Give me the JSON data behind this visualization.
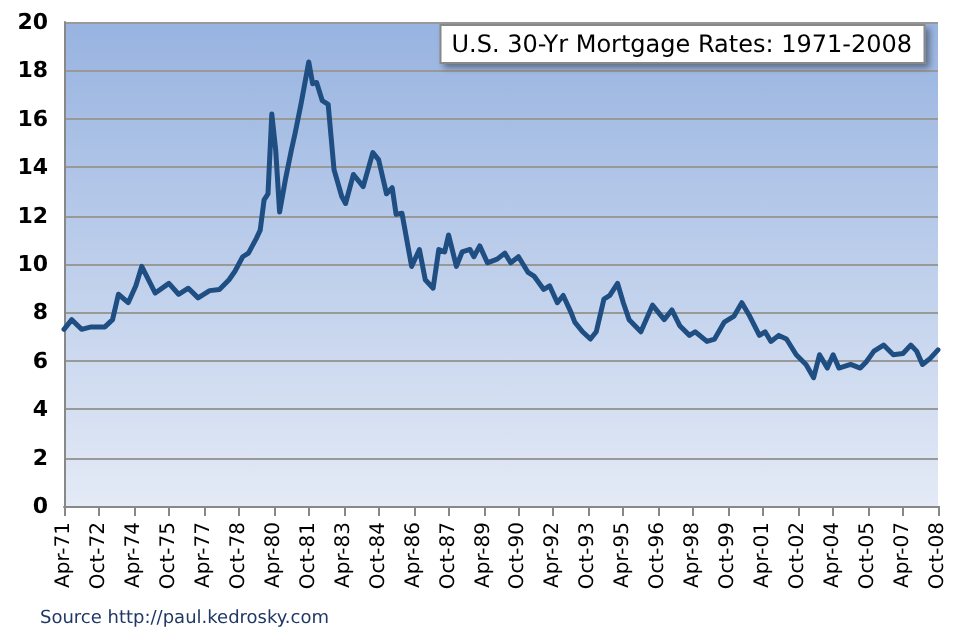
{
  "chart_data": {
    "type": "line",
    "title": "U.S. 30-Yr Mortgage Rates: 1971-2008",
    "annotations": [
      "Source http://paul.kedrosky.com"
    ],
    "x": [
      "1971-04",
      "1971-08",
      "1972-01",
      "1972-06",
      "1973-01",
      "1973-05",
      "1973-08",
      "1974-01",
      "1974-05",
      "1974-08",
      "1975-03",
      "1975-10",
      "1976-03",
      "1976-08",
      "1977-01",
      "1977-07",
      "1977-12",
      "1978-05",
      "1978-08",
      "1978-12",
      "1979-03",
      "1979-07",
      "1979-09",
      "1979-11",
      "1980-01",
      "1980-03",
      "1980-05",
      "1980-07",
      "1980-10",
      "1981-01",
      "1981-03",
      "1981-06",
      "1981-10",
      "1981-12",
      "1982-02",
      "1982-05",
      "1982-08",
      "1982-11",
      "1983-03",
      "1983-05",
      "1983-09",
      "1984-02",
      "1984-07",
      "1984-10",
      "1985-02",
      "1985-05",
      "1985-07",
      "1985-10",
      "1986-03",
      "1986-07",
      "1986-10",
      "1987-02",
      "1987-05",
      "1987-08",
      "1987-10",
      "1988-02",
      "1988-05",
      "1988-09",
      "1988-11",
      "1989-02",
      "1989-06",
      "1989-11",
      "1990-03",
      "1990-06",
      "1990-10",
      "1991-03",
      "1991-06",
      "1991-11",
      "1992-02",
      "1992-06",
      "1992-09",
      "1993-01",
      "1993-03",
      "1993-07",
      "1993-11",
      "1994-02",
      "1994-06",
      "1994-09",
      "1995-01",
      "1995-04",
      "1995-07",
      "1996-01",
      "1996-07",
      "1996-10",
      "1997-01",
      "1997-05",
      "1997-09",
      "1998-02",
      "1998-05",
      "1998-11",
      "1999-03",
      "1999-08",
      "2000-01",
      "2000-05",
      "2000-09",
      "2001-02",
      "2001-05",
      "2001-08",
      "2001-12",
      "2002-04",
      "2002-09",
      "2003-02",
      "2003-06",
      "2003-09",
      "2004-01",
      "2004-04",
      "2004-07",
      "2005-01",
      "2005-06",
      "2005-09",
      "2006-01",
      "2006-06",
      "2006-11",
      "2007-04",
      "2007-08",
      "2007-11",
      "2008-02",
      "2008-06",
      "2008-10"
    ],
    "series": [
      {
        "color": "#1f4e82",
        "values": [
          7.3,
          7.7,
          7.3,
          7.4,
          7.4,
          7.7,
          8.75,
          8.4,
          9.1,
          9.9,
          8.8,
          9.2,
          8.75,
          9.0,
          8.6,
          8.9,
          8.95,
          9.35,
          9.7,
          10.3,
          10.45,
          11.05,
          11.4,
          12.65,
          12.9,
          16.2,
          14.7,
          12.15,
          13.5,
          14.7,
          15.4,
          16.6,
          18.35,
          17.45,
          17.5,
          16.75,
          16.6,
          13.9,
          12.8,
          12.5,
          13.7,
          13.2,
          14.6,
          14.3,
          12.9,
          13.15,
          12.05,
          12.1,
          9.9,
          10.6,
          9.35,
          9.0,
          10.6,
          10.5,
          11.2,
          9.9,
          10.5,
          10.6,
          10.3,
          10.75,
          10.05,
          10.2,
          10.45,
          10.05,
          10.3,
          9.65,
          9.5,
          8.95,
          9.1,
          8.4,
          8.7,
          8.0,
          7.6,
          7.2,
          6.9,
          7.2,
          8.55,
          8.7,
          9.2,
          8.4,
          7.7,
          7.2,
          8.3,
          8.0,
          7.7,
          8.1,
          7.45,
          7.05,
          7.2,
          6.8,
          6.9,
          7.6,
          7.85,
          8.4,
          7.85,
          7.05,
          7.2,
          6.8,
          7.05,
          6.9,
          6.25,
          5.85,
          5.3,
          6.25,
          5.7,
          6.25,
          5.7,
          5.85,
          5.7,
          5.95,
          6.4,
          6.65,
          6.25,
          6.3,
          6.65,
          6.4,
          5.85,
          6.1,
          6.45
        ]
      }
    ],
    "xlim": [
      "1971-04",
      "2008-10"
    ],
    "xticks": [
      {
        "value": "1971-04",
        "label": "Apr-71"
      },
      {
        "value": "1972-10",
        "label": "Oct-72"
      },
      {
        "value": "1974-04",
        "label": "Apr-74"
      },
      {
        "value": "1975-10",
        "label": "Oct-75"
      },
      {
        "value": "1977-04",
        "label": "Apr-77"
      },
      {
        "value": "1978-10",
        "label": "Oct-78"
      },
      {
        "value": "1980-04",
        "label": "Apr-80"
      },
      {
        "value": "1981-10",
        "label": "Oct-81"
      },
      {
        "value": "1983-04",
        "label": "Apr-83"
      },
      {
        "value": "1984-10",
        "label": "Oct-84"
      },
      {
        "value": "1986-04",
        "label": "Apr-86"
      },
      {
        "value": "1987-10",
        "label": "Oct-87"
      },
      {
        "value": "1989-04",
        "label": "Apr-89"
      },
      {
        "value": "1990-10",
        "label": "Oct-90"
      },
      {
        "value": "1992-04",
        "label": "Apr-92"
      },
      {
        "value": "1993-10",
        "label": "Oct-93"
      },
      {
        "value": "1995-04",
        "label": "Apr-95"
      },
      {
        "value": "1996-10",
        "label": "Oct-96"
      },
      {
        "value": "1998-04",
        "label": "Apr-98"
      },
      {
        "value": "1999-10",
        "label": "Oct-99"
      },
      {
        "value": "2001-04",
        "label": "Apr-01"
      },
      {
        "value": "2002-10",
        "label": "Oct-02"
      },
      {
        "value": "2004-04",
        "label": "Apr-04"
      },
      {
        "value": "2005-10",
        "label": "Oct-05"
      },
      {
        "value": "2007-04",
        "label": "Apr-07"
      },
      {
        "value": "2008-10",
        "label": "Oct-08"
      }
    ],
    "ylim": [
      0,
      20
    ],
    "yticks": [
      0,
      2,
      4,
      6,
      8,
      10,
      12,
      14,
      16,
      18,
      20
    ],
    "grid": "y",
    "marker": "none",
    "line_style": "solid"
  }
}
